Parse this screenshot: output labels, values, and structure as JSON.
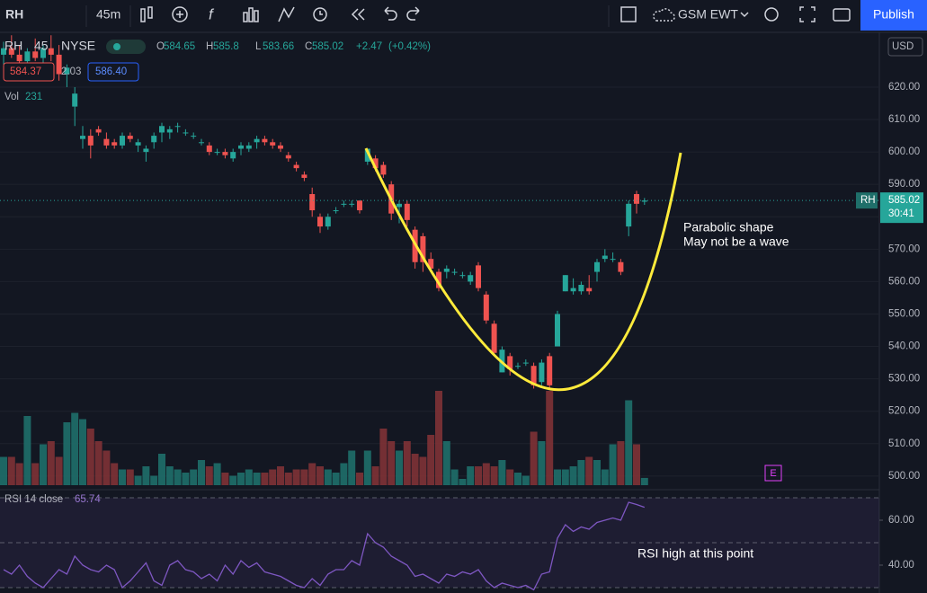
{
  "toolbar": {
    "symbol": "RH",
    "interval": "45m",
    "chart_label": "GSM EWT",
    "publish": "Publish",
    "currency": "USD"
  },
  "legend": {
    "symbol": "RH",
    "interval": "45",
    "exchange": "NYSE",
    "ohlc_labels": [
      "O",
      "H",
      "L",
      "C"
    ],
    "change": "+2.47",
    "change_pct": "(+0.42%)",
    "bid": "584.37",
    "spread": "2.03",
    "ask": "586.40",
    "volume_label": "Vol",
    "countdown": "30:41",
    "event_marker": "E"
  },
  "annotations": {
    "parabola": [
      "Parabolic shape",
      "May not be a wave"
    ],
    "rsi_note": "RSI high at this point"
  },
  "chart_data": {
    "type": "candlestick",
    "title": "RH",
    "up_color": "#26a69a",
    "down_color": "#ef5350",
    "ylim": [
      495.8,
      636.9
    ],
    "yticks": [
      {
        "value": 500,
        "label": "500.00"
      },
      {
        "value": 510,
        "label": "510.00"
      },
      {
        "value": 520,
        "label": "520.00"
      },
      {
        "value": 530,
        "label": "530.00"
      },
      {
        "value": 540,
        "label": "540.00"
      },
      {
        "value": 550,
        "label": "550.00"
      },
      {
        "value": 560,
        "label": "560.00"
      },
      {
        "value": 570,
        "label": "570.00"
      },
      {
        "value": 580,
        "label": "580.00"
      },
      {
        "value": 590,
        "label": "590.00"
      },
      {
        "value": 600,
        "label": "600.00"
      },
      {
        "value": 610,
        "label": "610.00"
      },
      {
        "value": 620,
        "label": "620.00"
      }
    ],
    "grid": true,
    "open": [
      630,
      632,
      630,
      628,
      631,
      629,
      632,
      630,
      624,
      614,
      604,
      605,
      607,
      604,
      603,
      602,
      605,
      602,
      600,
      603,
      606,
      606,
      608,
      606,
      605,
      603,
      602,
      600,
      600,
      598,
      601,
      601,
      603,
      604,
      603,
      602,
      599,
      596,
      593,
      587,
      580,
      577,
      582,
      584,
      584,
      585,
      597,
      598,
      596,
      590,
      583,
      584,
      576,
      574,
      567,
      563,
      563,
      563,
      562,
      560,
      565,
      556,
      547,
      532,
      537,
      534,
      535,
      534,
      529,
      537,
      540,
      557,
      557,
      557,
      558,
      563,
      567,
      567,
      566,
      577,
      587,
      584.65
    ],
    "high": [
      634,
      636,
      633,
      632,
      635,
      633,
      636,
      633,
      627,
      620,
      608,
      607,
      608,
      606,
      604,
      606,
      606,
      604,
      602,
      606,
      609,
      608,
      609,
      607,
      606,
      604,
      603,
      601,
      601,
      601,
      603,
      603,
      605,
      605,
      604,
      603,
      600,
      597,
      594,
      589,
      581,
      581,
      583,
      585,
      585,
      585,
      601,
      599,
      597,
      591,
      585,
      585,
      577,
      575,
      569,
      564,
      565,
      564,
      563,
      563,
      566,
      557,
      548,
      540,
      538,
      535,
      536,
      535,
      536,
      538,
      551,
      562,
      561,
      560,
      562,
      567,
      570,
      569,
      567,
      585,
      588,
      585.8
    ],
    "low": [
      627,
      629,
      626,
      625,
      628,
      627,
      628,
      622,
      620,
      608,
      601,
      598,
      605,
      601,
      601,
      601,
      603,
      600,
      597,
      601,
      603,
      604,
      606,
      605,
      604,
      602,
      599,
      599,
      598,
      597,
      599,
      600,
      601,
      602,
      601,
      600,
      597,
      594,
      591,
      580,
      575,
      576,
      581,
      583,
      583,
      581,
      596,
      594,
      592,
      579,
      578,
      577,
      564,
      563,
      563,
      557,
      561,
      562,
      561,
      559,
      557,
      547,
      537,
      532,
      531,
      533,
      534,
      527,
      528,
      527,
      540,
      557,
      556,
      556,
      556,
      560,
      566,
      566,
      562,
      574,
      581,
      583.66
    ],
    "close": [
      632,
      630,
      628,
      631,
      629,
      632,
      630,
      624,
      626,
      618,
      605,
      602,
      606,
      602,
      602,
      605,
      604,
      603,
      601,
      605,
      608,
      607,
      608,
      606,
      605,
      603,
      600,
      600,
      599,
      600,
      602,
      602,
      604,
      603,
      602,
      601,
      598,
      595,
      592,
      582,
      577,
      580,
      582,
      584,
      584,
      582,
      601,
      595,
      593,
      581,
      584,
      579,
      566,
      566,
      564,
      558,
      564,
      563,
      562,
      562,
      558,
      548,
      538,
      539,
      533,
      534,
      535,
      528,
      535,
      528,
      550,
      562,
      558,
      559,
      557,
      566,
      568,
      567,
      563,
      584,
      584,
      585.02
    ],
    "volume": [
      900,
      900,
      700,
      2200,
      700,
      1300,
      1400,
      900,
      2000,
      2300,
      2100,
      1800,
      1400,
      1100,
      700,
      500,
      500,
      300,
      600,
      300,
      1000,
      600,
      500,
      400,
      500,
      800,
      600,
      700,
      400,
      300,
      400,
      500,
      400,
      400,
      500,
      600,
      400,
      500,
      500,
      700,
      600,
      500,
      400,
      700,
      1100,
      400,
      1100,
      600,
      1800,
      1400,
      1100,
      1400,
      1000,
      900,
      1600,
      3000,
      1400,
      500,
      200,
      600,
      600,
      700,
      600,
      800,
      500,
      400,
      300,
      1700,
      1400,
      3000,
      500,
      500,
      600,
      800,
      900,
      800,
      500,
      1300,
      1400,
      2700,
      1300,
      231
    ],
    "rsi": {
      "name": "RSI 14 close",
      "color": "#7e57c2",
      "ylim": [
        27.6,
        73.6
      ],
      "yticks": [
        {
          "value": 40,
          "label": "40.00"
        },
        {
          "value": 60,
          "label": "60.00"
        }
      ],
      "bands": [
        70,
        50,
        30
      ],
      "values": [
        38,
        36,
        40,
        35,
        32,
        30,
        34,
        38,
        36,
        44,
        40,
        38,
        37,
        40,
        38,
        30,
        33,
        37,
        41,
        33,
        31,
        40,
        42,
        38,
        37,
        34,
        36,
        33,
        40,
        36,
        42,
        39,
        41,
        37,
        36,
        35,
        33,
        31,
        30,
        34,
        31,
        36,
        38,
        38,
        42,
        40,
        54,
        50,
        48,
        44,
        42,
        40,
        35,
        36,
        34,
        32,
        36,
        35,
        37,
        36,
        38,
        33,
        30,
        32,
        31,
        30,
        31,
        29,
        36,
        37,
        52,
        58,
        55,
        57,
        56,
        59,
        60,
        61,
        60,
        68,
        67,
        65.74
      ]
    }
  }
}
